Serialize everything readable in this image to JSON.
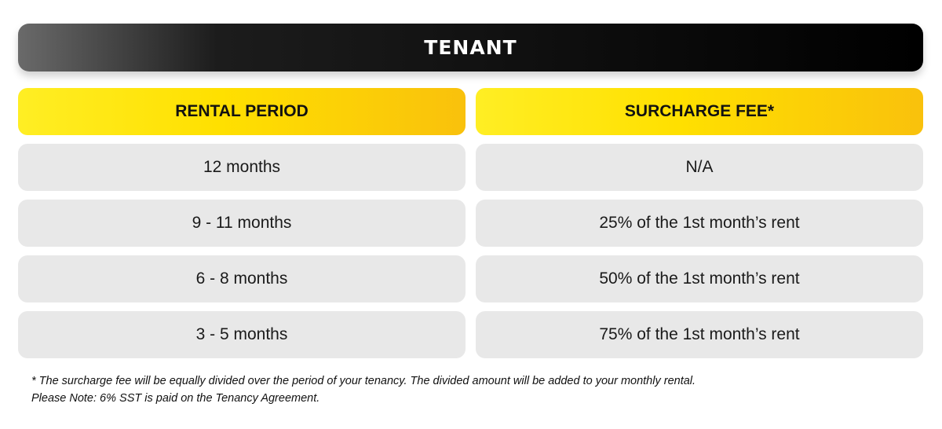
{
  "banner": {
    "title": "TENANT"
  },
  "table": {
    "headers": [
      "RENTAL PERIOD",
      "SURCHARGE FEE*"
    ],
    "rows": [
      {
        "period": "12 months",
        "fee": "N/A"
      },
      {
        "period": "9 - 11 months",
        "fee": "25% of the 1st month’s rent"
      },
      {
        "period": "6 - 8 months",
        "fee": "50% of the 1st month’s rent"
      },
      {
        "period": "3 - 5 months",
        "fee": "75% of the 1st month’s rent"
      }
    ]
  },
  "footnotes": {
    "line1": "*  The surcharge fee will be equally divided over the period of your tenancy.  The divided amount will be added to your monthly rental.",
    "line2": "Please Note: 6% SST is paid on the Tenancy Agreement."
  },
  "colors": {
    "banner_start": "#6a6a6a",
    "banner_end": "#000000",
    "header_yellow": "#ffe000",
    "header_amber": "#f9c10c",
    "cell_gray": "#e8e8e8"
  }
}
